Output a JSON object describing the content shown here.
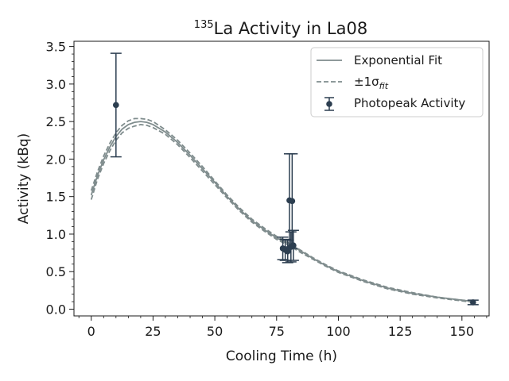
{
  "chart_data": {
    "type": "line",
    "title_sup": "135",
    "title_main": "La Activity in La08",
    "xlabel": "Cooling Time (h)",
    "ylabel": "Activity (kBq)",
    "xlim": [
      -7,
      161
    ],
    "ylim": [
      -0.09,
      3.57
    ],
    "xticks": [
      0,
      25,
      50,
      75,
      100,
      125,
      150
    ],
    "yticks": [
      0.0,
      0.5,
      1.0,
      1.5,
      2.0,
      2.5,
      3.0,
      3.5
    ],
    "xtick_labels": [
      "0",
      "25",
      "50",
      "75",
      "100",
      "125",
      "150"
    ],
    "ytick_labels": [
      "0.0",
      "0.5",
      "1.0",
      "1.5",
      "2.0",
      "2.5",
      "3.0",
      "3.5"
    ],
    "grid": false,
    "legend_position": "top-right",
    "legend": {
      "fit_label": "Exponential Fit",
      "band_label_prefix": "±1σ",
      "band_label_sub": "fit",
      "points_label": "Photopeak Activity"
    },
    "colors": {
      "fit": "#7f8c8d",
      "band": "#7f8c8d",
      "points": "#2c3e50"
    },
    "fit_curve": {
      "x": [
        0,
        2.5,
        5,
        7.5,
        10,
        12.5,
        15,
        17.5,
        20,
        22.5,
        25,
        30,
        35,
        40,
        45,
        50,
        55,
        60,
        65,
        70,
        75,
        78,
        80,
        85,
        90,
        95,
        100,
        110,
        120,
        130,
        140,
        150,
        155
      ],
      "y": [
        1.52,
        1.78,
        1.99,
        2.16,
        2.3,
        2.4,
        2.46,
        2.49,
        2.5,
        2.49,
        2.46,
        2.36,
        2.22,
        2.05,
        1.87,
        1.69,
        1.5,
        1.33,
        1.18,
        1.06,
        0.95,
        0.9,
        0.87,
        0.77,
        0.67,
        0.58,
        0.5,
        0.38,
        0.28,
        0.21,
        0.16,
        0.12,
        0.1
      ]
    },
    "band_upper": {
      "x": [
        0,
        2.5,
        5,
        7.5,
        10,
        12.5,
        15,
        17.5,
        20,
        22.5,
        25,
        30,
        35,
        40,
        45,
        50,
        55,
        60,
        65,
        70,
        75,
        78,
        80,
        85,
        90,
        95,
        100,
        110,
        120,
        130,
        140,
        150,
        155
      ],
      "y": [
        1.58,
        1.83,
        2.04,
        2.21,
        2.35,
        2.45,
        2.51,
        2.54,
        2.54,
        2.53,
        2.5,
        2.39,
        2.25,
        2.08,
        1.9,
        1.71,
        1.52,
        1.35,
        1.2,
        1.08,
        0.97,
        0.92,
        0.88,
        0.78,
        0.68,
        0.59,
        0.51,
        0.39,
        0.29,
        0.22,
        0.16,
        0.12,
        0.11
      ]
    },
    "band_lower": {
      "x": [
        0,
        2.5,
        5,
        7.5,
        10,
        12.5,
        15,
        17.5,
        20,
        22.5,
        25,
        30,
        35,
        40,
        45,
        50,
        55,
        60,
        65,
        70,
        75,
        78,
        80,
        85,
        90,
        95,
        100,
        110,
        120,
        130,
        140,
        150,
        155
      ],
      "y": [
        1.46,
        1.73,
        1.94,
        2.11,
        2.25,
        2.35,
        2.41,
        2.44,
        2.46,
        2.45,
        2.42,
        2.33,
        2.19,
        2.02,
        1.84,
        1.66,
        1.48,
        1.31,
        1.16,
        1.04,
        0.93,
        0.88,
        0.85,
        0.75,
        0.66,
        0.57,
        0.49,
        0.37,
        0.27,
        0.2,
        0.15,
        0.11,
        0.09
      ]
    },
    "points": [
      {
        "x": 10,
        "y": 2.72,
        "yerr": 0.69
      },
      {
        "x": 77.5,
        "y": 0.81,
        "yerr": 0.15
      },
      {
        "x": 78.5,
        "y": 0.79,
        "yerr": 0.14
      },
      {
        "x": 79.5,
        "y": 0.77,
        "yerr": 0.15
      },
      {
        "x": 80.2,
        "y": 1.45,
        "yerr": 0.62
      },
      {
        "x": 80.8,
        "y": 0.83,
        "yerr": 0.2
      },
      {
        "x": 81.3,
        "y": 1.44,
        "yerr": 0.63
      },
      {
        "x": 81.8,
        "y": 0.85,
        "yerr": 0.2
      },
      {
        "x": 154.5,
        "y": 0.09,
        "yerr": 0.03
      }
    ]
  }
}
